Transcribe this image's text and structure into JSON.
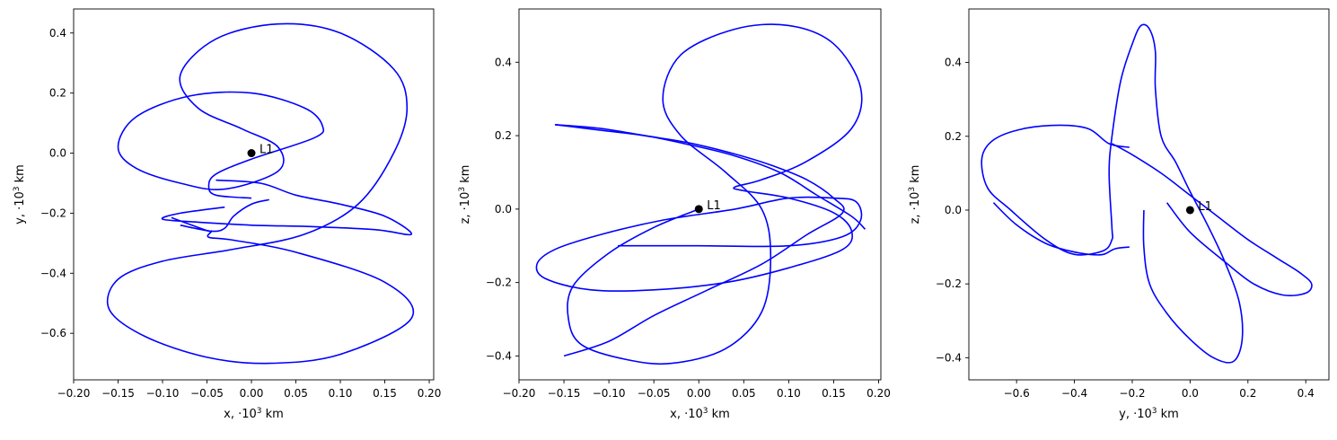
{
  "colors": {
    "trajectory": "#0000ff",
    "point": "#000000",
    "frame": "#000000",
    "background": "#ffffff"
  },
  "chart_data": [
    {
      "type": "line",
      "xlabel": "x, ·10",
      "ylabel": "y, ·10",
      "label_exponent": "3",
      "label_unit": " km",
      "xlim": [
        -0.2,
        0.205
      ],
      "ylim": [
        -0.755,
        0.48
      ],
      "xticks": [
        -0.2,
        -0.15,
        -0.1,
        -0.05,
        0.0,
        0.05,
        0.1,
        0.15,
        0.2
      ],
      "xtick_labels": [
        "−0.20",
        "−0.15",
        "−0.10",
        "−0.05",
        "0.00",
        "0.05",
        "0.10",
        "0.15",
        "0.20"
      ],
      "yticks": [
        -0.6,
        -0.4,
        -0.2,
        0.0,
        0.2,
        0.4
      ],
      "ytick_labels": [
        "−0.6",
        "−0.4",
        "−0.2",
        "0.0",
        "0.2",
        "0.4"
      ],
      "point": {
        "label": "L1",
        "x": 0.0,
        "y": 0.0
      },
      "series": [
        {
          "color": "#0000ff",
          "x": [
            -0.09,
            -0.05,
            -0.045,
            -0.048,
            -0.02,
            0.05,
            0.15,
            0.18,
            0.1,
            0.02,
            -0.05,
            -0.12,
            -0.16,
            -0.15,
            -0.1,
            -0.02,
            0.06,
            0.12,
            0.16,
            0.175,
            0.16,
            0.1,
            0.03,
            -0.04,
            -0.08,
            -0.06,
            -0.01,
            0.03,
            0.03,
            -0.03,
            -0.08,
            -0.13,
            -0.15,
            -0.13,
            -0.07,
            0.0,
            0.06,
            0.08,
            0.07,
            0.0,
            -0.04,
            -0.048,
            -0.04,
            0.0
          ],
          "y": [
            -0.215,
            -0.258,
            -0.26,
            -0.28,
            -0.29,
            -0.33,
            -0.43,
            -0.55,
            -0.67,
            -0.7,
            -0.68,
            -0.61,
            -0.52,
            -0.42,
            -0.36,
            -0.32,
            -0.27,
            -0.17,
            0.0,
            0.15,
            0.28,
            0.4,
            0.43,
            0.38,
            0.26,
            0.15,
            0.08,
            0.02,
            -0.06,
            -0.12,
            -0.1,
            -0.05,
            0.02,
            0.12,
            0.19,
            0.2,
            0.15,
            0.09,
            0.05,
            -0.02,
            -0.07,
            -0.11,
            -0.14,
            -0.15
          ]
        },
        {
          "color": "#0000ff",
          "x": [
            -0.04,
            0.01,
            0.05,
            0.1,
            0.15,
            0.18,
            0.14,
            0.07,
            0.0,
            -0.06,
            -0.1,
            -0.08,
            -0.03
          ],
          "y": [
            -0.09,
            -0.1,
            -0.14,
            -0.17,
            -0.21,
            -0.27,
            -0.255,
            -0.245,
            -0.24,
            -0.23,
            -0.22,
            -0.2,
            -0.18
          ]
        },
        {
          "color": "#0000ff",
          "x": [
            -0.08,
            -0.045,
            -0.03,
            -0.02,
            0.0,
            0.02
          ],
          "y": [
            -0.24,
            -0.26,
            -0.25,
            -0.21,
            -0.17,
            -0.155
          ]
        }
      ]
    },
    {
      "type": "line",
      "xlabel": "x, ·10",
      "ylabel": "z, ·10",
      "label_exponent": "3",
      "label_unit": " km",
      "xlim": [
        -0.2,
        0.2025
      ],
      "ylim": [
        -0.465,
        0.545
      ],
      "xticks": [
        -0.2,
        -0.15,
        -0.1,
        -0.05,
        0.0,
        0.05,
        0.1,
        0.15,
        0.2
      ],
      "xtick_labels": [
        "−0.20",
        "−0.15",
        "−0.10",
        "−0.05",
        "0.00",
        "0.05",
        "0.10",
        "0.15",
        "0.20"
      ],
      "yticks": [
        -0.4,
        -0.2,
        0.0,
        0.2,
        0.4
      ],
      "yticks_note": "",
      "ytick_labels": [
        "−0.4",
        "−0.2",
        "0.0",
        "0.2",
        "0.4"
      ],
      "point": {
        "label": "L1",
        "x": 0.0,
        "y": 0.0
      },
      "series": [
        {
          "color": "#0000ff",
          "x": [
            0.0,
            -0.05,
            -0.1,
            -0.14,
            -0.145,
            -0.13,
            -0.08,
            -0.03,
            0.03,
            0.07,
            0.08,
            0.07,
            0.03,
            -0.02,
            -0.04,
            -0.02,
            0.04,
            0.1,
            0.15,
            0.18,
            0.17,
            0.12,
            0.07,
            0.04,
            0.05,
            0.1,
            0.15,
            0.17,
            0.16,
            0.1,
            0.03,
            -0.05,
            -0.12,
            -0.17,
            -0.18,
            -0.16,
            -0.11,
            -0.04,
            0.04,
            0.1,
            0.15,
            0.175,
            0.18,
            0.16,
            0.1,
            0.0,
            -0.07,
            -0.09
          ],
          "y": [
            0.0,
            -0.05,
            -0.12,
            -0.21,
            -0.3,
            -0.37,
            -0.41,
            -0.42,
            -0.38,
            -0.28,
            -0.13,
            0.0,
            0.1,
            0.2,
            0.3,
            0.42,
            0.49,
            0.5,
            0.45,
            0.33,
            0.22,
            0.13,
            0.08,
            0.06,
            0.05,
            0.03,
            -0.01,
            -0.06,
            -0.11,
            -0.16,
            -0.2,
            -0.22,
            -0.22,
            -0.19,
            -0.15,
            -0.11,
            -0.07,
            -0.03,
            0.0,
            0.03,
            0.03,
            0.02,
            -0.03,
            -0.075,
            -0.1,
            -0.1,
            -0.1,
            -0.1
          ]
        },
        {
          "color": "#0000ff",
          "x": [
            -0.16,
            -0.11,
            -0.06,
            -0.01,
            0.04,
            0.08,
            0.12,
            0.15,
            0.16,
            0.12,
            0.07,
            0.01,
            -0.05,
            -0.1,
            -0.15
          ],
          "y": [
            0.23,
            0.22,
            0.2,
            0.18,
            0.15,
            0.12,
            0.08,
            0.03,
            -0.01,
            -0.07,
            -0.15,
            -0.22,
            -0.29,
            -0.36,
            -0.4
          ]
        },
        {
          "color": "#0000ff",
          "x": [
            -0.16,
            -0.11,
            -0.06,
            -0.01,
            0.04,
            0.09,
            0.13,
            0.17,
            0.185
          ],
          "y": [
            0.23,
            0.215,
            0.2,
            0.175,
            0.145,
            0.1,
            0.04,
            -0.02,
            -0.055
          ]
        }
      ]
    },
    {
      "type": "line",
      "xlabel": "y, ·10",
      "ylabel": "z, ·10",
      "label_exponent": "3",
      "label_unit": " km",
      "xlim": [
        -0.765,
        0.48
      ],
      "ylim": [
        -0.46,
        0.545
      ],
      "xticks": [
        -0.6,
        -0.4,
        -0.2,
        0.0,
        0.2,
        0.4
      ],
      "xtick_labels": [
        "−0.6",
        "−0.4",
        "−0.2",
        "0.0",
        "0.2",
        "0.4"
      ],
      "yticks": [
        -0.4,
        -0.2,
        0.0,
        0.2,
        0.4
      ],
      "ytick_labels": [
        "−0.4",
        "−0.2",
        "0.0",
        "0.2",
        "0.4"
      ],
      "point": {
        "label": "L1",
        "x": 0.0,
        "y": 0.0
      },
      "series": [
        {
          "color": "#0000ff",
          "x": [
            -0.16,
            -0.16,
            -0.14,
            -0.08,
            0.0,
            0.08,
            0.15,
            0.18,
            0.17,
            0.12,
            0.06,
            0.0,
            -0.05,
            -0.1,
            -0.12,
            -0.12,
            -0.14,
            -0.17,
            -0.2,
            -0.24,
            -0.27,
            -0.28,
            -0.27,
            -0.27,
            -0.3,
            -0.4,
            -0.5,
            -0.62,
            -0.7,
            -0.72,
            -0.68,
            -0.58,
            -0.45,
            -0.35,
            -0.28,
            -0.21
          ],
          "y": [
            0.0,
            -0.1,
            -0.2,
            -0.28,
            -0.35,
            -0.4,
            -0.41,
            -0.35,
            -0.25,
            -0.14,
            -0.04,
            0.05,
            0.13,
            0.2,
            0.33,
            0.43,
            0.49,
            0.5,
            0.45,
            0.35,
            0.2,
            0.1,
            -0.05,
            -0.08,
            -0.11,
            -0.12,
            -0.08,
            0.0,
            0.06,
            0.14,
            0.19,
            0.22,
            0.23,
            0.22,
            0.18,
            0.17
          ]
        },
        {
          "color": "#0000ff",
          "x": [
            -0.27,
            -0.2,
            -0.1,
            0.0,
            0.1,
            0.2,
            0.3,
            0.38,
            0.42,
            0.4,
            0.32,
            0.22,
            0.12,
            0.0,
            -0.08
          ],
          "y": [
            0.18,
            0.15,
            0.1,
            0.04,
            -0.02,
            -0.08,
            -0.13,
            -0.17,
            -0.2,
            -0.225,
            -0.23,
            -0.2,
            -0.14,
            -0.06,
            0.02
          ]
        },
        {
          "color": "#0000ff",
          "x": [
            -0.21,
            -0.26,
            -0.3,
            -0.35,
            -0.42,
            -0.5,
            -0.6,
            -0.68
          ],
          "y": [
            -0.1,
            -0.105,
            -0.12,
            -0.12,
            -0.11,
            -0.09,
            -0.04,
            0.02
          ]
        }
      ]
    }
  ]
}
